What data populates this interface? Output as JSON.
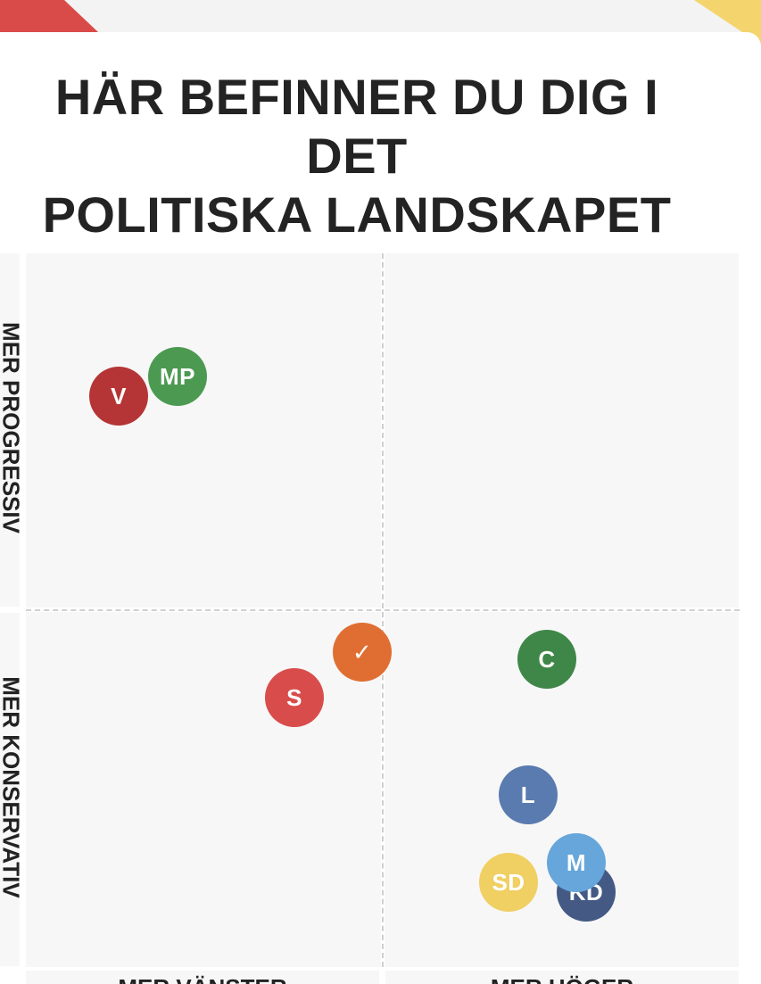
{
  "header": {
    "title_line1": "HÄR BEFINNER DU DIG I DET",
    "title_line2": "POLITISKA LANDSKAPET"
  },
  "axes": {
    "y_top_label": "MER PROGRESSIV",
    "y_bottom_label": "MER KONSERVATIV",
    "x_left_label": "MER VÄNSTER",
    "x_right_label": "MER HÖGER"
  },
  "user_marker": {
    "label": "✓",
    "color": "#e06e33"
  },
  "parties": [
    {
      "label": "V",
      "color": "#b53536"
    },
    {
      "label": "MP",
      "color": "#4c9a52"
    },
    {
      "label": "S",
      "color": "#d84d4b"
    },
    {
      "label": "C",
      "color": "#3f8748"
    },
    {
      "label": "L",
      "color": "#5a7bb0"
    },
    {
      "label": "KD",
      "color": "#445a84"
    },
    {
      "label": "SD",
      "color": "#f0cf63"
    },
    {
      "label": "M",
      "color": "#66a6db"
    }
  ],
  "colors": {
    "accent_red": "#d94b49",
    "accent_yellow": "#f4d46c",
    "quadrant_bg": "#f7f7f7",
    "text": "#232323"
  }
}
